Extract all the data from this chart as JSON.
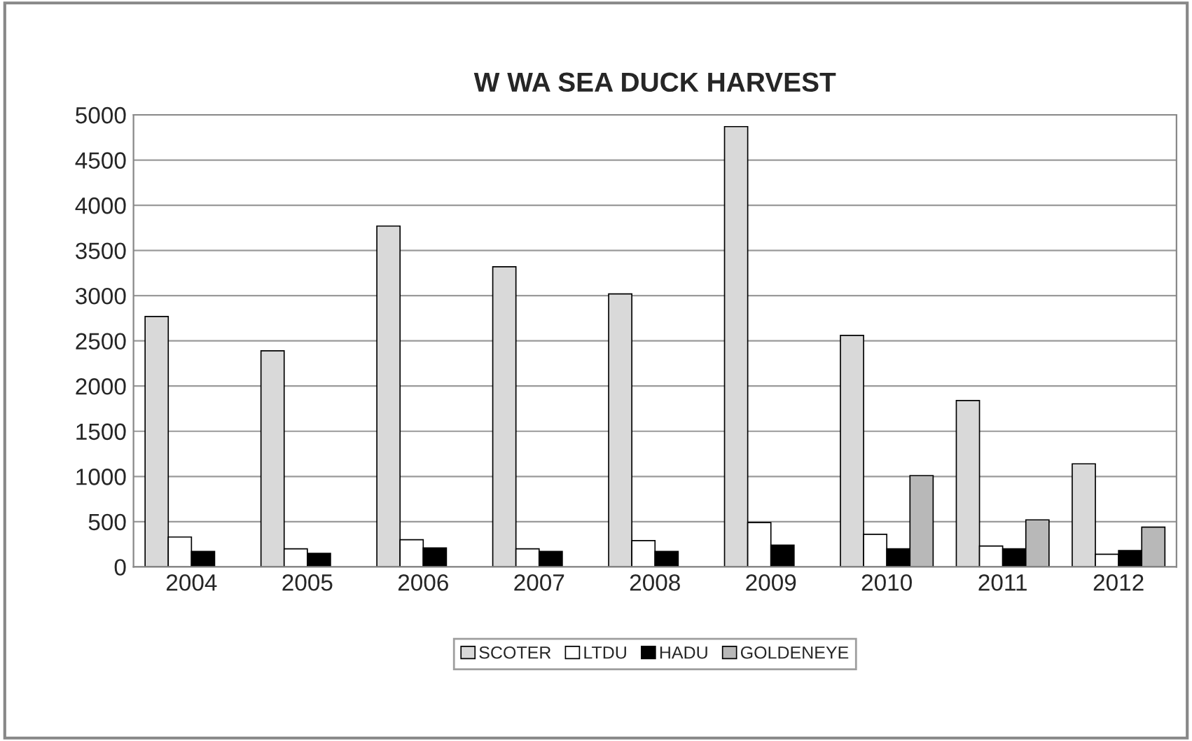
{
  "chart_data": {
    "type": "bar",
    "title": "W WA SEA DUCK HARVEST",
    "categories": [
      "2004",
      "2005",
      "2006",
      "2007",
      "2008",
      "2009",
      "2010",
      "2011",
      "2012"
    ],
    "series": [
      {
        "name": "SCOTER",
        "color": "#d9d9d9",
        "values": [
          2770,
          2390,
          3770,
          3320,
          3020,
          4870,
          2560,
          1840,
          1140
        ]
      },
      {
        "name": "LTDU",
        "color": "#ffffff",
        "values": [
          330,
          200,
          300,
          200,
          290,
          490,
          360,
          230,
          140
        ]
      },
      {
        "name": "HADU",
        "color": "#000000",
        "values": [
          170,
          150,
          210,
          170,
          170,
          240,
          200,
          200,
          180
        ]
      },
      {
        "name": "GOLDENEYE",
        "color": "#b8b8b8",
        "values": [
          null,
          null,
          null,
          null,
          null,
          null,
          1010,
          520,
          440
        ]
      }
    ],
    "ylim": [
      0,
      5000
    ],
    "yticks": [
      0,
      500,
      1000,
      1500,
      2000,
      2500,
      3000,
      3500,
      4000,
      4500,
      5000
    ],
    "grid": "y",
    "legend": "bottom"
  }
}
